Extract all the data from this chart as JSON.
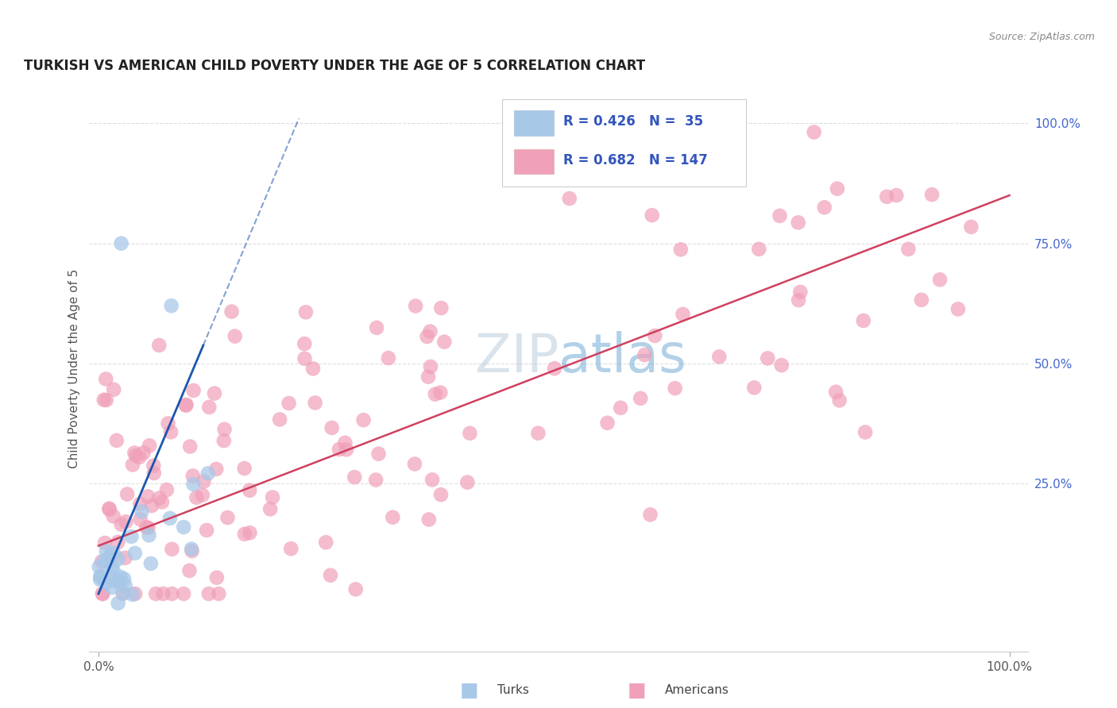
{
  "title": "TURKISH VS AMERICAN CHILD POVERTY UNDER THE AGE OF 5 CORRELATION CHART",
  "source": "Source: ZipAtlas.com",
  "ylabel": "Child Poverty Under the Age of 5",
  "turks_R": 0.426,
  "turks_N": 35,
  "americans_R": 0.682,
  "americans_N": 147,
  "turks_color": "#A8C8E8",
  "turks_edge_color": "#7AAAD0",
  "americans_color": "#F0A0B8",
  "americans_edge_color": "#E07898",
  "turks_line_color": "#1A56B0",
  "americans_line_color": "#D04060",
  "watermark_color": "#C5D5E8",
  "background_color": "#FFFFFF",
  "grid_color": "#DDDDDD",
  "legend_color": "#3355BB",
  "dot_size": 180
}
